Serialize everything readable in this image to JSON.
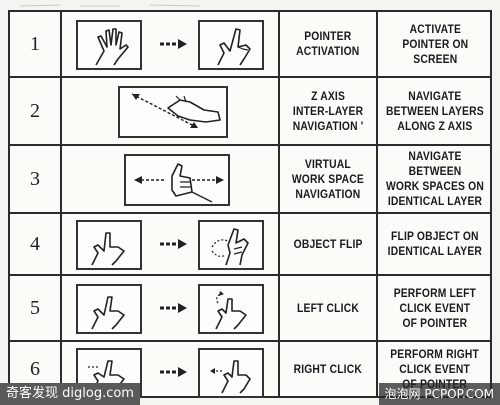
{
  "rows": [
    {
      "number": "1",
      "function": "POINTER\nACTIVATION",
      "description": "ACTIVATE\nPOINTER ON\nSCREEN"
    },
    {
      "number": "2",
      "function": "Z AXIS\nINTER-LAYER\nNAVIGATION '",
      "description": "NAVIGATE\nBETWEEN LAYERS\nALONG Z AXIS"
    },
    {
      "number": "3",
      "function": "VIRTUAL\nWORK SPACE\nNAVIGATION",
      "description": "NAVIGATE BETWEEN\nWORK SPACES ON\nIDENTICAL LAYER"
    },
    {
      "number": "4",
      "function": "OBJECT FLIP",
      "description": "FLIP OBJECT ON\nIDENTICAL LAYER"
    },
    {
      "number": "5",
      "function": "LEFT CLICK",
      "description": "PERFORM LEFT\nCLICK EVENT\nOF POINTER"
    },
    {
      "number": "6",
      "function": "RIGHT CLICK",
      "description": "PERFORM RIGHT\nCLICK EVENT\nOF POINTER"
    }
  ],
  "icons": {
    "row1_before": "open-hand-icon",
    "row1_after": "pointing-hand-icon",
    "row2": "hand-diagonal-move-icon",
    "row3": "thumb-horizontal-move-icon",
    "row4_before": "pointing-hand-icon",
    "row4_after": "hand-flip-icon",
    "row5_before": "pointing-hand-icon",
    "row5_after": "hand-left-click-icon",
    "row6_before": "pointing-hand-icon",
    "row6_after": "hand-right-click-icon",
    "transition": "arrow-right-icon"
  },
  "watermarks": {
    "left": "奇客发现 diglog.com",
    "right": "泡泡网 PCPOP.COM"
  }
}
